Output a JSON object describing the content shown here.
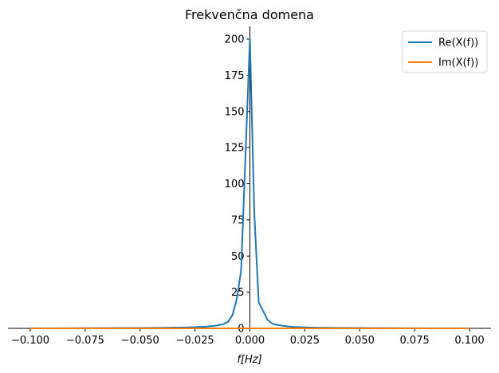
{
  "chart_data": {
    "type": "line",
    "title": "Frekvenčna domena",
    "xlabel": "f[Hz]",
    "ylabel": "",
    "xlim": [
      -0.1,
      0.1
    ],
    "ylim": [
      0,
      210
    ],
    "xticks": [
      -0.1,
      -0.075,
      -0.05,
      -0.025,
      0.0,
      0.025,
      0.05,
      0.075,
      0.1
    ],
    "xtick_labels": [
      "−0.100",
      "−0.075",
      "−0.050",
      "−0.025",
      "0.000",
      "0.025",
      "0.050",
      "0.075",
      "0.100"
    ],
    "yticks": [
      0,
      25,
      50,
      75,
      100,
      125,
      150,
      175,
      200
    ],
    "ytick_labels": [
      "0",
      "25",
      "50",
      "75",
      "100",
      "125",
      "150",
      "175",
      "200"
    ],
    "grid": false,
    "legend_position": "top-right",
    "series": [
      {
        "name": "Re(X(f))",
        "color": "#1f77b4",
        "x": [
          -0.1,
          -0.09,
          -0.08,
          -0.07,
          -0.06,
          -0.05,
          -0.04,
          -0.03,
          -0.025,
          -0.02,
          -0.017,
          -0.015,
          -0.012,
          -0.01,
          -0.008,
          -0.006,
          -0.004,
          -0.002,
          0.0,
          0.002,
          0.004,
          0.006,
          0.008,
          0.01,
          0.012,
          0.015,
          0.017,
          0.02,
          0.025,
          0.03,
          0.04,
          0.05,
          0.06,
          0.07,
          0.08,
          0.09,
          0.1
        ],
        "y": [
          0.1,
          0.1,
          0.15,
          0.2,
          0.25,
          0.3,
          0.4,
          0.6,
          0.8,
          1.2,
          1.6,
          2.0,
          3.0,
          4.5,
          9,
          20,
          40,
          120,
          200,
          80,
          18,
          12,
          6,
          3.5,
          2.5,
          1.8,
          1.4,
          1.0,
          0.7,
          0.5,
          0.35,
          0.3,
          0.2,
          0.15,
          0.1,
          0.1,
          0.1
        ]
      },
      {
        "name": "Im(X(f))",
        "color": "#ff7f0e",
        "x": [
          -0.1,
          -0.05,
          0.0,
          0.05,
          0.1
        ],
        "y": [
          0,
          0,
          0,
          0,
          0
        ]
      }
    ]
  }
}
